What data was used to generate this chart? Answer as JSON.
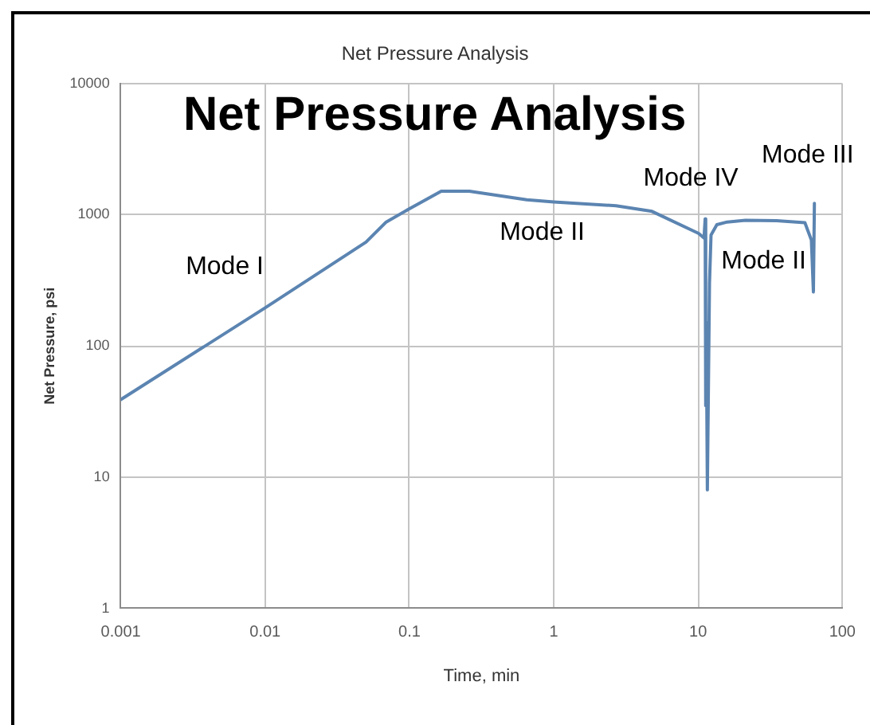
{
  "chart_data": {
    "type": "line",
    "title": "Net Pressure Analysis",
    "xlabel": "Time, min",
    "ylabel": "Net Pressure, psi",
    "x": [
      0.001,
      0.01,
      0.05,
      0.069,
      0.1,
      0.166,
      0.26,
      0.65,
      1.0,
      2.7,
      4.8,
      10.1,
      11,
      11.2,
      11.3,
      11.4,
      11.6,
      12.0,
      12.3,
      13.5,
      15.9,
      21.3,
      35,
      55,
      61,
      63,
      64
    ],
    "series": [
      {
        "color": "#5b84b1",
        "values": [
          39,
          195,
          618,
          880,
          1110,
          1510,
          1510,
          1300,
          1250,
          1170,
          1060,
          720,
          665,
          930,
          35,
          150,
          8,
          300,
          700,
          840,
          880,
          906,
          900,
          870,
          640,
          258,
          1220
        ]
      }
    ],
    "xlim": [
      0.001,
      100
    ],
    "ylim": [
      1,
      10000
    ],
    "xticks": [
      0.001,
      0.01,
      0.1,
      1,
      10,
      100
    ],
    "yticks": [
      1,
      10,
      100,
      1000,
      10000
    ],
    "log": "xy",
    "grid": true,
    "annotations": [
      "Net Pressure Analysis",
      "Mode I",
      "Mode II",
      "Mode IV",
      "Mode III",
      "Mode II"
    ]
  }
}
